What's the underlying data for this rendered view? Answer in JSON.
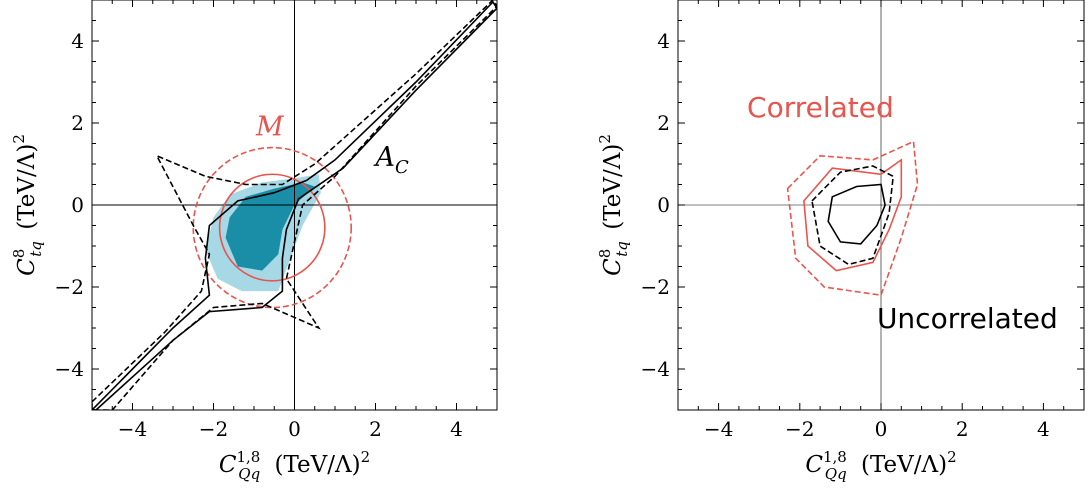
{
  "chart_data": [
    {
      "type": "contour",
      "xlabel": "$C^{1,8}_{Qq}$ (TeV/Λ)$^2$",
      "ylabel": "$C^{8}_{tq}$ (TeV/Λ)$^2$",
      "xlim": [
        -5,
        5
      ],
      "ylim": [
        -5,
        5
      ],
      "xticks": [
        -4,
        -2,
        0,
        2,
        4
      ],
      "yticks": [
        -4,
        -2,
        0,
        2,
        4
      ],
      "x_tick_labels": [
        "−4",
        "−2",
        "0",
        "2",
        "4"
      ],
      "y_tick_labels": [
        "−4",
        "−2",
        "0",
        "2",
        "4"
      ],
      "annotations": [
        {
          "text": "M",
          "x": -0.95,
          "y": 1.7,
          "color": "#e8554e",
          "italic": true
        },
        {
          "text": "A",
          "sub": "C",
          "x": 2.0,
          "y": 0.95,
          "color": "#000000",
          "italic": true
        }
      ],
      "series": [
        {
          "label": "M",
          "style": "solid",
          "color": "#e8554e",
          "center": [
            -0.55,
            -0.55
          ],
          "radius": 1.3
        },
        {
          "label": "M",
          "style": "dashed",
          "color": "#e8554e",
          "center": [
            -0.55,
            -0.55
          ],
          "radius": 1.95
        },
        {
          "label": "A_C",
          "style": "solid",
          "color": "#000000",
          "points": [
            [
              -5,
              -5
            ],
            [
              -3,
              -3
            ],
            [
              -2.1,
              -2.2
            ],
            [
              -2.2,
              -1.3
            ],
            [
              -2.1,
              -0.5
            ],
            [
              -1.4,
              0.1
            ],
            [
              -0.5,
              0.3
            ],
            [
              0.3,
              0.6
            ],
            [
              1.0,
              1.1
            ],
            [
              3,
              3
            ],
            [
              4.9,
              4.95
            ],
            [
              5,
              4.8
            ],
            [
              3,
              2.8
            ],
            [
              1.2,
              0.9
            ],
            [
              0.1,
              0.15
            ],
            [
              -0.2,
              -0.6
            ],
            [
              -0.3,
              -1.3
            ],
            [
              -0.3,
              -2.1
            ],
            [
              -0.8,
              -2.5
            ],
            [
              -2.1,
              -2.6
            ],
            [
              -3,
              -3.3
            ],
            [
              -4.9,
              -5
            ]
          ]
        },
        {
          "label": "A_C",
          "style": "dashed",
          "color": "#000000",
          "points": [
            [
              -5,
              -4.8
            ],
            [
              -3.2,
              -3.1
            ],
            [
              -2.3,
              -2.1
            ],
            [
              -2.1,
              -1.2
            ],
            [
              -2.5,
              -0.5
            ],
            [
              -3.4,
              1.2
            ],
            [
              -2.2,
              0.7
            ],
            [
              -1.2,
              0.5
            ],
            [
              -0.3,
              0.5
            ],
            [
              0.5,
              1.0
            ],
            [
              3,
              3.2
            ],
            [
              4.9,
              5
            ],
            [
              5,
              4.85
            ],
            [
              3,
              2.9
            ],
            [
              1,
              0.7
            ],
            [
              0.2,
              0.0
            ],
            [
              0,
              -0.9
            ],
            [
              -0.2,
              -1.8
            ],
            [
              0.6,
              -3.0
            ],
            [
              -0.8,
              -2.4
            ],
            [
              -2.0,
              -2.5
            ],
            [
              -3,
              -3.3
            ],
            [
              -4.5,
              -5
            ],
            [
              -5,
              -5
            ]
          ]
        },
        {
          "label": "filled-outer",
          "color": "#a6d8e6",
          "points": [
            [
              -2.0,
              -0.3
            ],
            [
              -1.6,
              0.25
            ],
            [
              -0.8,
              0.55
            ],
            [
              0.0,
              0.65
            ],
            [
              0.6,
              0.75
            ],
            [
              0.65,
              0.3
            ],
            [
              0.2,
              -0.5
            ],
            [
              -0.1,
              -1.3
            ],
            [
              -0.4,
              -2.1
            ],
            [
              -1.3,
              -2.1
            ],
            [
              -1.9,
              -1.8
            ],
            [
              -2.2,
              -1.1
            ],
            [
              -2.0,
              -0.3
            ]
          ]
        },
        {
          "label": "filled-inner",
          "color": "#1b8ea7",
          "points": [
            [
              -1.6,
              -0.3
            ],
            [
              -1.2,
              0.2
            ],
            [
              -0.5,
              0.4
            ],
            [
              0.2,
              0.55
            ],
            [
              0.5,
              0.45
            ],
            [
              0.0,
              0.0
            ],
            [
              -0.3,
              -0.6
            ],
            [
              -0.4,
              -1.2
            ],
            [
              -0.8,
              -1.6
            ],
            [
              -1.4,
              -1.5
            ],
            [
              -1.7,
              -0.8
            ],
            [
              -1.6,
              -0.3
            ]
          ]
        }
      ]
    },
    {
      "type": "contour",
      "xlabel": "$C^{1,8}_{Qq}$ (TeV/Λ)$^2$",
      "ylabel": "$C^{8}_{tq}$ (TeV/Λ)$^2$",
      "xlim": [
        -5,
        5
      ],
      "ylim": [
        -5,
        5
      ],
      "xticks": [
        -4,
        -2,
        0,
        2,
        4
      ],
      "yticks": [
        -4,
        -2,
        0,
        2,
        4
      ],
      "x_tick_labels": [
        "−4",
        "−2",
        "0",
        "2",
        "4"
      ],
      "y_tick_labels": [
        "−4",
        "−2",
        "0",
        "2",
        "4"
      ],
      "annotations": [
        {
          "text": "Correlated",
          "x": -3.3,
          "y": 2.15,
          "color": "#e8554e",
          "font": "sans"
        },
        {
          "text": "Uncorrelated",
          "x": -0.1,
          "y": -3.0,
          "color": "#000000",
          "font": "sans"
        }
      ],
      "series": [
        {
          "label": "Correlated",
          "style": "solid",
          "color": "#e8554e",
          "points": [
            [
              -1.9,
              0.1
            ],
            [
              -1.2,
              0.9
            ],
            [
              0.0,
              0.75
            ],
            [
              0.5,
              1.1
            ],
            [
              0.5,
              0.2
            ],
            [
              0.2,
              -0.6
            ],
            [
              -0.2,
              -1.4
            ],
            [
              -1.1,
              -1.6
            ],
            [
              -1.8,
              -1.0
            ],
            [
              -1.9,
              0.1
            ]
          ]
        },
        {
          "label": "Correlated",
          "style": "dashed",
          "color": "#e8554e",
          "points": [
            [
              -2.3,
              0.4
            ],
            [
              -1.5,
              1.2
            ],
            [
              -0.2,
              1.1
            ],
            [
              0.8,
              1.55
            ],
            [
              0.9,
              0.5
            ],
            [
              0.5,
              -0.8
            ],
            [
              0.0,
              -2.2
            ],
            [
              -1.4,
              -2.0
            ],
            [
              -2.1,
              -1.3
            ],
            [
              -2.3,
              0.4
            ]
          ]
        },
        {
          "label": "Uncorrelated",
          "style": "solid",
          "color": "#000000",
          "points": [
            [
              -1.2,
              0.2
            ],
            [
              -0.6,
              0.45
            ],
            [
              0.0,
              0.5
            ],
            [
              0.1,
              0.0
            ],
            [
              -0.1,
              -0.5
            ],
            [
              -0.5,
              -0.95
            ],
            [
              -1.0,
              -0.9
            ],
            [
              -1.3,
              -0.4
            ],
            [
              -1.2,
              0.2
            ]
          ]
        },
        {
          "label": "Uncorrelated",
          "style": "dashed",
          "color": "#000000",
          "points": [
            [
              -1.7,
              0.1
            ],
            [
              -1.0,
              0.8
            ],
            [
              -0.2,
              0.95
            ],
            [
              0.3,
              0.7
            ],
            [
              0.2,
              -0.2
            ],
            [
              -0.2,
              -1.3
            ],
            [
              -0.8,
              -1.45
            ],
            [
              -1.5,
              -1.0
            ],
            [
              -1.7,
              0.1
            ]
          ]
        }
      ]
    }
  ]
}
